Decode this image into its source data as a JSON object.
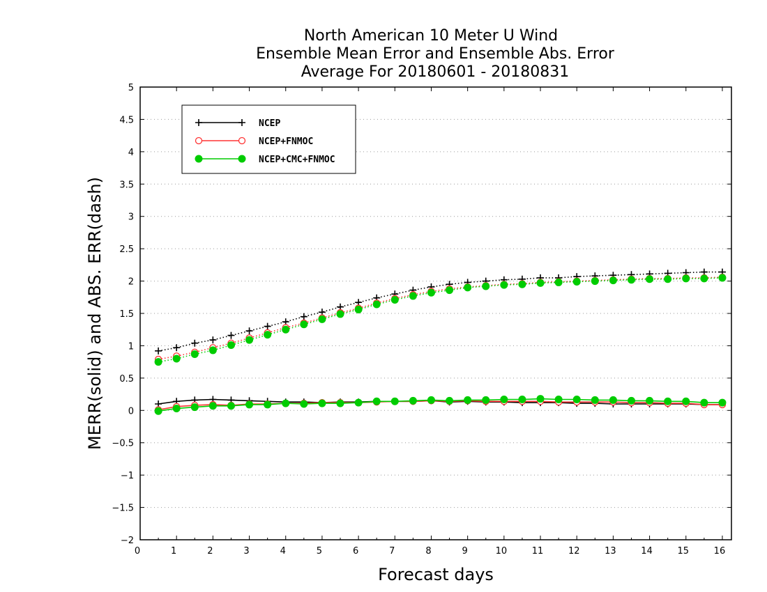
{
  "chart_data": {
    "type": "line",
    "title_lines": [
      "North American 10 Meter U Wind",
      "Ensemble Mean Error and Ensemble Abs. Error",
      "Average For 20180601 - 20180831"
    ],
    "xlabel": "Forecast days",
    "ylabel": "MERR(solid) and ABS. ERR(dash)",
    "xlim": [
      0,
      16.25
    ],
    "ylim": [
      -2,
      5
    ],
    "x_ticks": [
      0,
      1,
      2,
      3,
      4,
      5,
      6,
      7,
      8,
      9,
      10,
      11,
      12,
      13,
      14,
      15,
      16
    ],
    "y_ticks": [
      -2,
      -1.5,
      -1,
      -0.5,
      0,
      0.5,
      1,
      1.5,
      2,
      2.5,
      3,
      3.5,
      4,
      4.5,
      5
    ],
    "y_tick_labels": [
      "−2",
      "−1.5",
      "−1",
      "−0.5",
      "0",
      "0.5",
      "1",
      "1.5",
      "2",
      "2.5",
      "3",
      "3.5",
      "4",
      "4.5",
      "5"
    ],
    "grid": "horizontal dotted",
    "legend_position": "top-left",
    "x": [
      0.5,
      1.0,
      1.5,
      2.0,
      2.5,
      3.0,
      3.5,
      4.0,
      4.5,
      5.0,
      5.5,
      6.0,
      6.5,
      7.0,
      7.5,
      8.0,
      8.5,
      9.0,
      9.5,
      10.0,
      10.5,
      11.0,
      11.5,
      12.0,
      12.5,
      13.0,
      13.5,
      14.0,
      14.5,
      15.0,
      15.5,
      16.0
    ],
    "series": [
      {
        "name": "NCEP",
        "color": "#000000",
        "marker": "plus",
        "merr": [
          0.1,
          0.14,
          0.16,
          0.17,
          0.16,
          0.15,
          0.14,
          0.13,
          0.13,
          0.12,
          0.13,
          0.13,
          0.14,
          0.14,
          0.14,
          0.15,
          0.13,
          0.14,
          0.13,
          0.13,
          0.12,
          0.12,
          0.12,
          0.11,
          0.11,
          0.1,
          0.1,
          0.1,
          0.1,
          0.1,
          0.09,
          0.09
        ],
        "abs_err": [
          0.92,
          0.97,
          1.04,
          1.09,
          1.16,
          1.23,
          1.3,
          1.37,
          1.45,
          1.52,
          1.6,
          1.67,
          1.74,
          1.8,
          1.86,
          1.91,
          1.95,
          1.98,
          2.0,
          2.02,
          2.03,
          2.05,
          2.05,
          2.07,
          2.08,
          2.09,
          2.1,
          2.11,
          2.12,
          2.13,
          2.14,
          2.14
        ]
      },
      {
        "name": "NCEP+FNMOC",
        "color": "#ff3333",
        "marker": "open-circle",
        "merr": [
          0.01,
          0.06,
          0.08,
          0.09,
          0.08,
          0.1,
          0.1,
          0.11,
          0.11,
          0.12,
          0.12,
          0.12,
          0.13,
          0.14,
          0.14,
          0.15,
          0.14,
          0.15,
          0.14,
          0.14,
          0.14,
          0.14,
          0.13,
          0.13,
          0.13,
          0.13,
          0.12,
          0.12,
          0.11,
          0.11,
          0.09,
          0.09
        ],
        "abs_err": [
          0.79,
          0.84,
          0.9,
          0.97,
          1.04,
          1.12,
          1.2,
          1.28,
          1.35,
          1.43,
          1.51,
          1.58,
          1.66,
          1.73,
          1.79,
          1.84,
          1.88,
          1.91,
          1.93,
          1.95,
          1.96,
          1.98,
          1.99,
          2.0,
          2.01,
          2.02,
          2.03,
          2.04,
          2.04,
          2.05,
          2.05,
          2.06
        ]
      },
      {
        "name": "NCEP+CMC+FNMOC",
        "color": "#00cc00",
        "marker": "filled-circle",
        "merr": [
          -0.01,
          0.03,
          0.05,
          0.07,
          0.07,
          0.09,
          0.09,
          0.11,
          0.1,
          0.11,
          0.11,
          0.12,
          0.14,
          0.14,
          0.15,
          0.16,
          0.15,
          0.16,
          0.16,
          0.17,
          0.17,
          0.18,
          0.17,
          0.17,
          0.16,
          0.16,
          0.15,
          0.15,
          0.14,
          0.14,
          0.12,
          0.12
        ],
        "abs_err": [
          0.75,
          0.8,
          0.87,
          0.93,
          1.01,
          1.09,
          1.17,
          1.25,
          1.33,
          1.41,
          1.49,
          1.56,
          1.64,
          1.71,
          1.77,
          1.82,
          1.86,
          1.9,
          1.92,
          1.94,
          1.95,
          1.97,
          1.98,
          1.99,
          2.0,
          2.01,
          2.02,
          2.03,
          2.03,
          2.04,
          2.04,
          2.05
        ]
      }
    ]
  }
}
